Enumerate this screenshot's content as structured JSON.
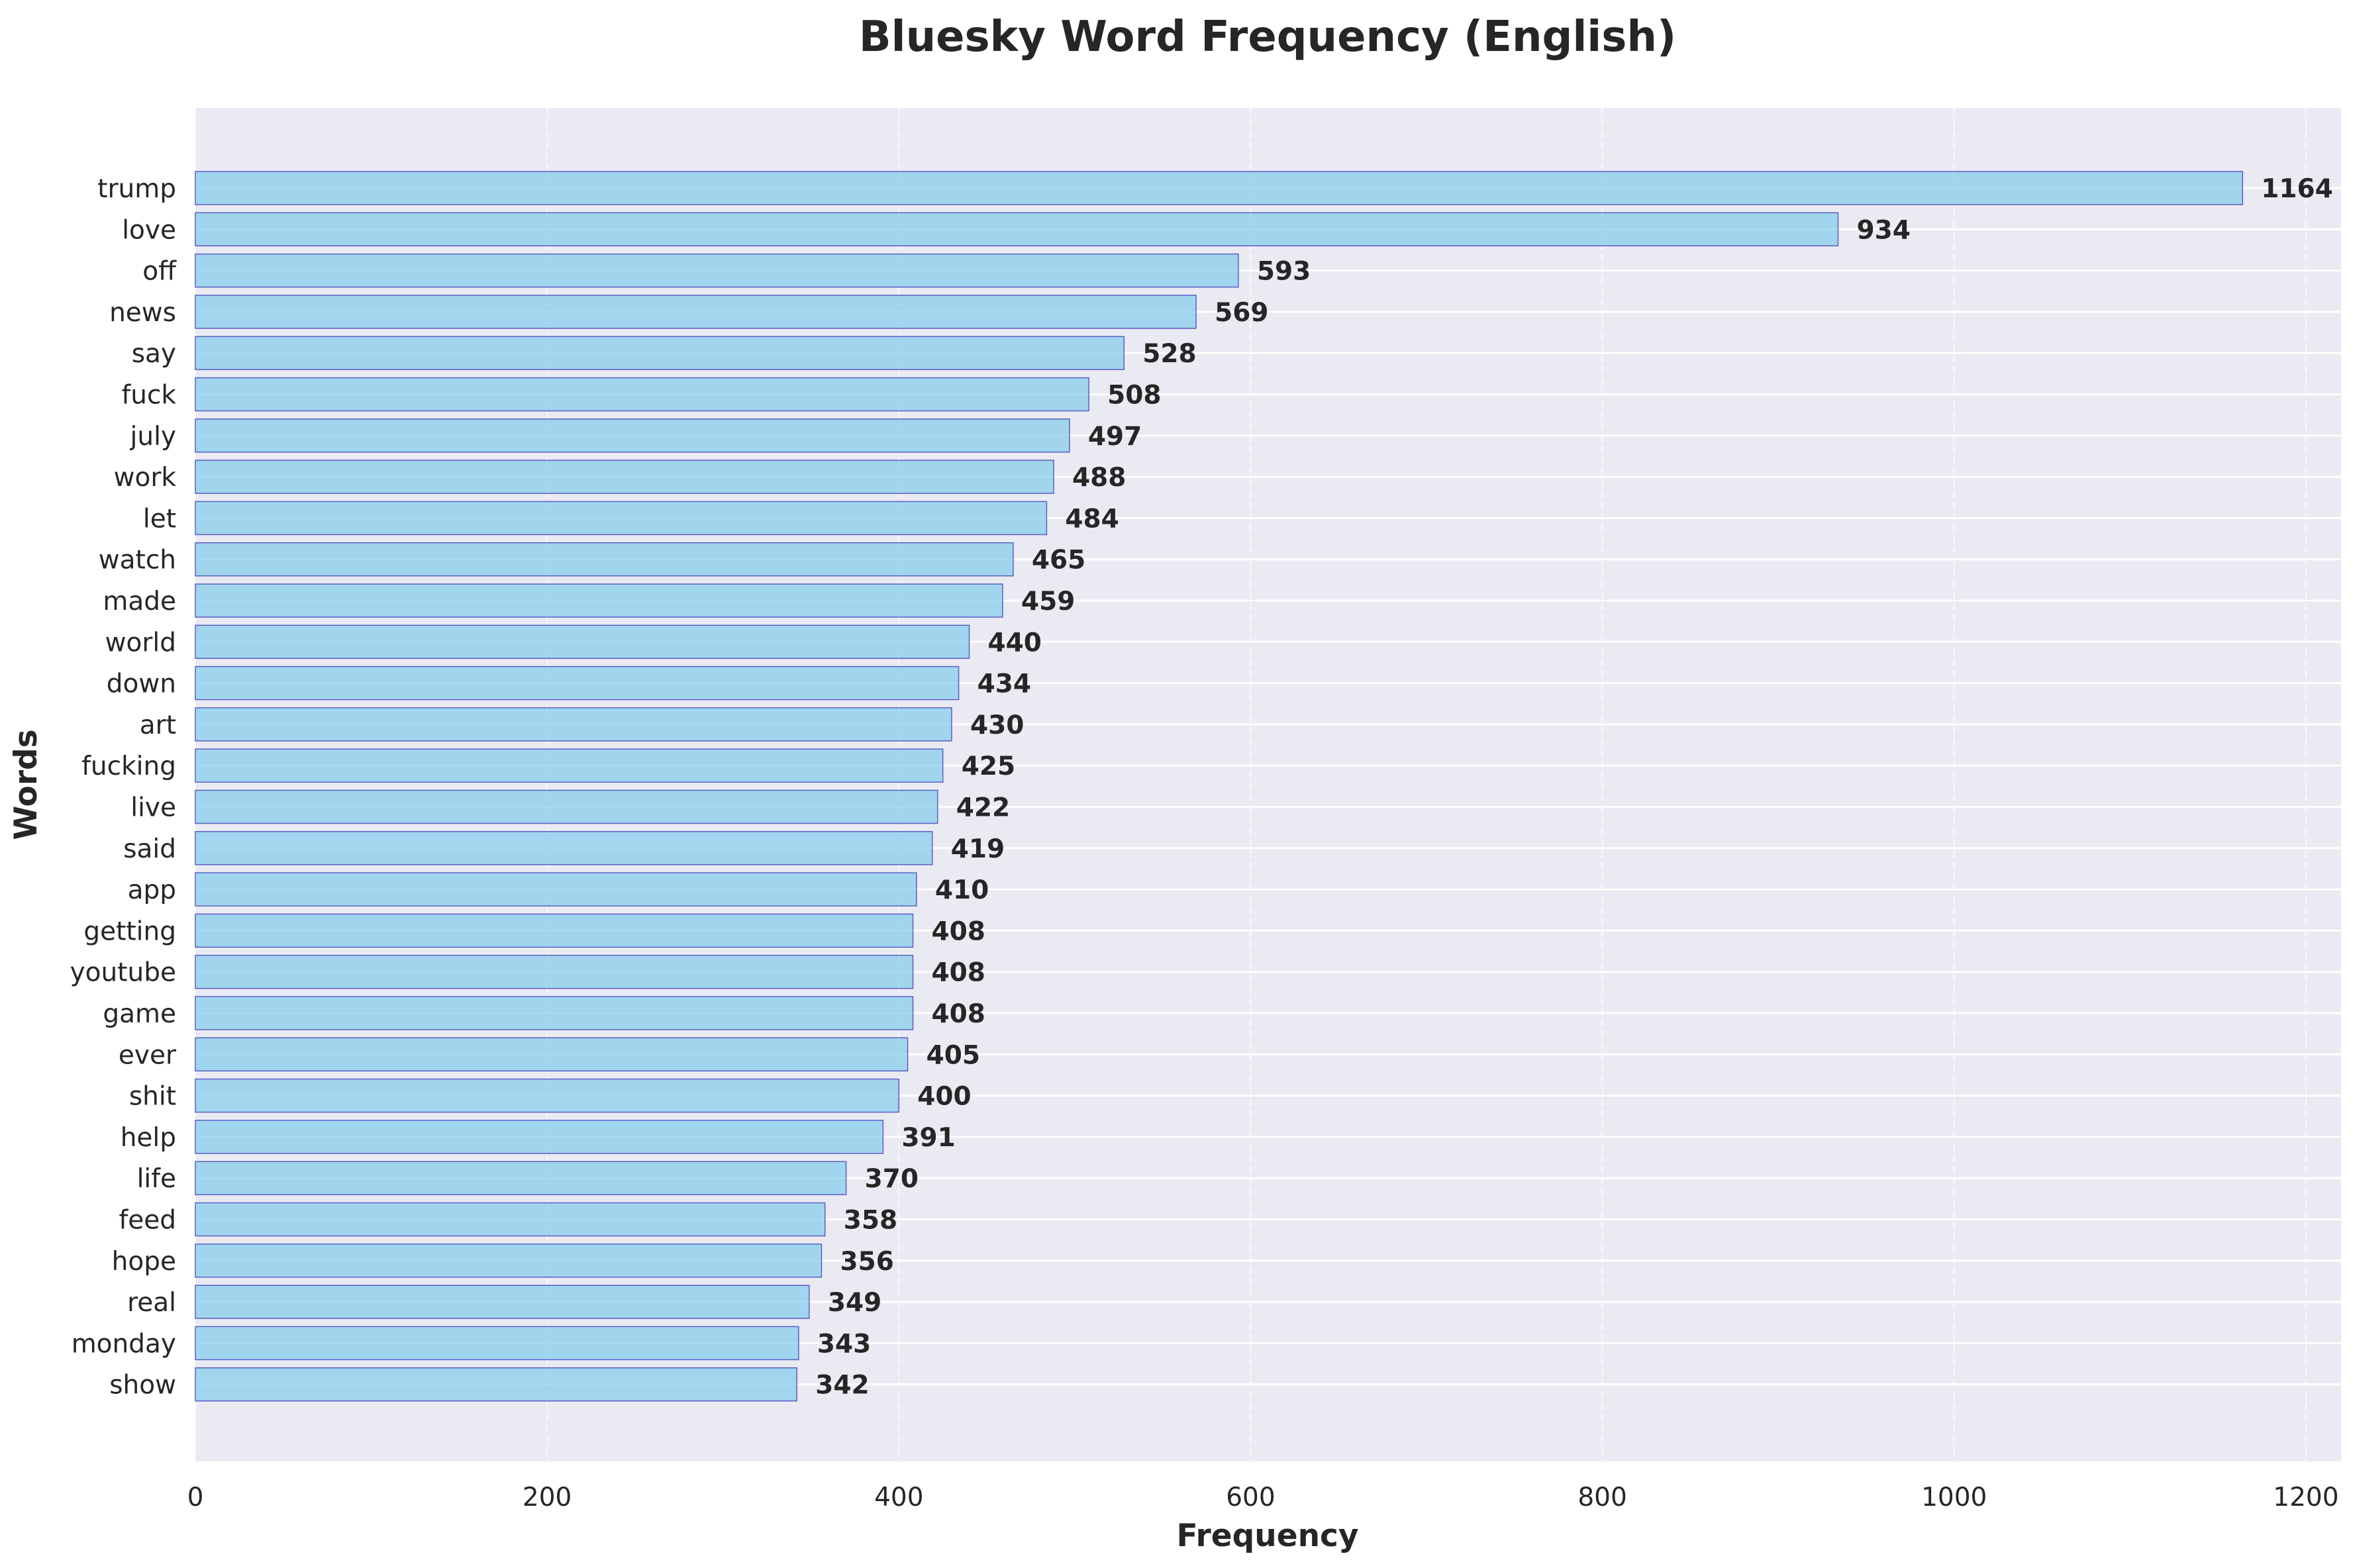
{
  "chart_data": {
    "type": "bar",
    "orientation": "horizontal",
    "title": "Bluesky Word Frequency (English)",
    "xlabel": "Frequency",
    "ylabel": "Words",
    "xlim": [
      0,
      1220
    ],
    "xticks": [
      0,
      200,
      400,
      600,
      800,
      1000,
      1200
    ],
    "grid": true,
    "colors": {
      "bar": "#87CEEB",
      "bar_edge": "#5B5FC7",
      "plot_bg": "#EAEAF2",
      "grid": "#FFFFFF",
      "text": "#262626"
    },
    "categories": [
      "trump",
      "love",
      "off",
      "news",
      "say",
      "fuck",
      "july",
      "work",
      "let",
      "watch",
      "made",
      "world",
      "down",
      "art",
      "fucking",
      "live",
      "said",
      "app",
      "getting",
      "youtube",
      "game",
      "ever",
      "shit",
      "help",
      "life",
      "feed",
      "hope",
      "real",
      "monday",
      "show"
    ],
    "values": [
      1164,
      934,
      593,
      569,
      528,
      508,
      497,
      488,
      484,
      465,
      459,
      440,
      434,
      430,
      425,
      422,
      419,
      410,
      408,
      408,
      408,
      405,
      400,
      391,
      370,
      358,
      356,
      349,
      343,
      342
    ]
  }
}
